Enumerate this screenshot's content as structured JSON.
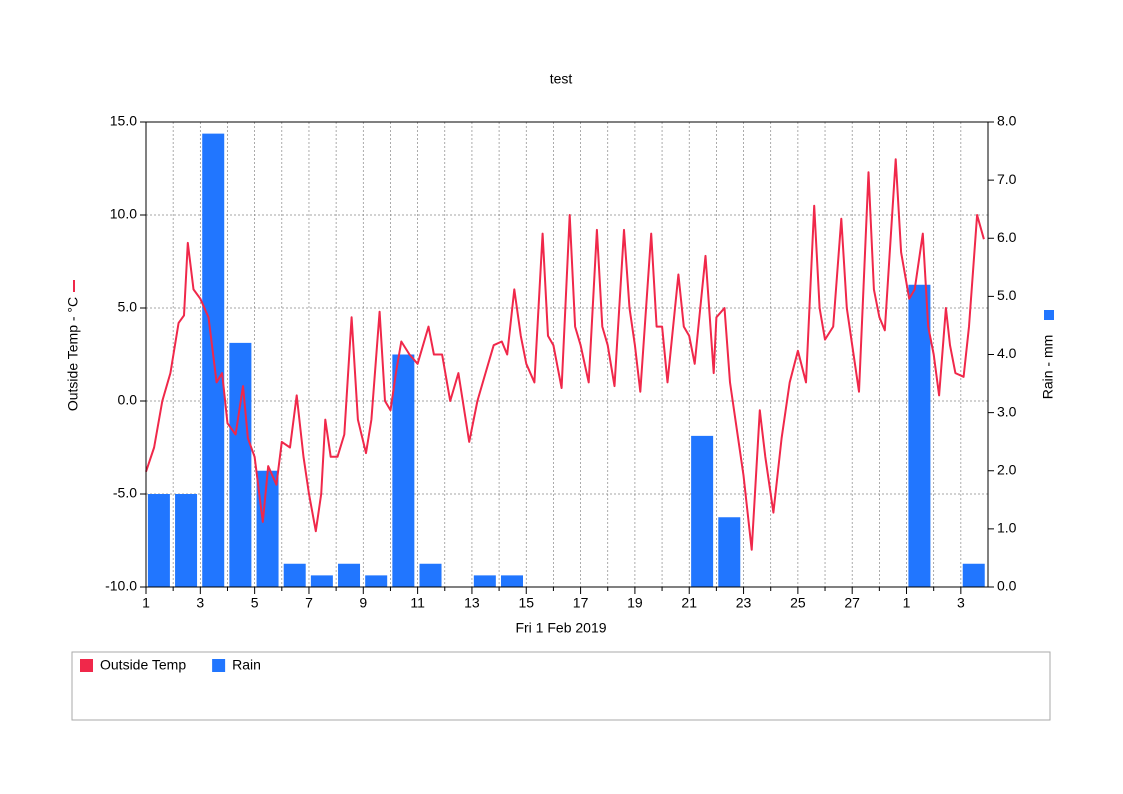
{
  "chart_data": {
    "type": "line",
    "title": "test",
    "x_label": "Fri 1 Feb 2019",
    "y_label": "Outside Temp - °C",
    "y2_label": "Rain - mm",
    "xlim": [
      0,
      31
    ],
    "xticks": [
      {
        "value": 0,
        "label": "1"
      },
      {
        "value": 2,
        "label": "3"
      },
      {
        "value": 4,
        "label": "5"
      },
      {
        "value": 6,
        "label": "7"
      },
      {
        "value": 8,
        "label": "9"
      },
      {
        "value": 10,
        "label": "11"
      },
      {
        "value": 12,
        "label": "13"
      },
      {
        "value": 14,
        "label": "15"
      },
      {
        "value": 16,
        "label": "17"
      },
      {
        "value": 18,
        "label": "19"
      },
      {
        "value": 20,
        "label": "21"
      },
      {
        "value": 22,
        "label": "23"
      },
      {
        "value": 24,
        "label": "25"
      },
      {
        "value": 26,
        "label": "27"
      },
      {
        "value": 28,
        "label": "1"
      },
      {
        "value": 30,
        "label": "3"
      }
    ],
    "xminorticks": [
      1,
      3,
      5,
      7,
      9,
      11,
      13,
      15,
      17,
      19,
      21,
      23,
      25,
      27,
      29
    ],
    "ylim": [
      -10,
      15
    ],
    "yticks": [
      {
        "value": 15,
        "label": "15.0"
      },
      {
        "value": 10,
        "label": "10.0"
      },
      {
        "value": 5,
        "label": "5.0"
      },
      {
        "value": 0,
        "label": "0.0"
      },
      {
        "value": -5,
        "label": "-5.0"
      },
      {
        "value": -10,
        "label": "-10.0"
      }
    ],
    "y2lim": [
      0,
      8
    ],
    "y2ticks": [
      {
        "value": 8,
        "label": "8.0"
      },
      {
        "value": 7,
        "label": "7.0"
      },
      {
        "value": 6,
        "label": "6.0"
      },
      {
        "value": 5,
        "label": "5.0"
      },
      {
        "value": 4,
        "label": "4.0"
      },
      {
        "value": 3,
        "label": "3.0"
      },
      {
        "value": 2,
        "label": "2.0"
      },
      {
        "value": 1,
        "label": "1.0"
      },
      {
        "value": 0,
        "label": "0.0"
      }
    ],
    "grid": true,
    "legend": "bottom",
    "series": [
      {
        "name": "Outside Temp",
        "type": "line",
        "color": "#f0284a",
        "x": [
          0,
          0.3,
          0.6,
          0.9,
          1.2,
          1.4,
          1.54,
          1.75,
          2.0,
          2.3,
          2.6,
          2.8,
          3.0,
          3.3,
          3.57,
          3.75,
          4.0,
          4.3,
          4.5,
          4.8,
          5.0,
          5.3,
          5.55,
          5.8,
          6.0,
          6.25,
          6.45,
          6.6,
          6.8,
          7.05,
          7.3,
          7.57,
          7.8,
          8.1,
          8.3,
          8.6,
          8.8,
          9.0,
          9.2,
          9.4,
          9.7,
          10.0,
          10.4,
          10.6,
          10.9,
          11.2,
          11.5,
          11.9,
          12.2,
          12.5,
          12.8,
          13.1,
          13.3,
          13.56,
          13.8,
          14.0,
          14.3,
          14.6,
          14.8,
          15.0,
          15.3,
          15.6,
          15.8,
          16.0,
          16.3,
          16.6,
          16.8,
          17.0,
          17.25,
          17.6,
          17.8,
          18.0,
          18.2,
          18.6,
          18.8,
          19.0,
          19.2,
          19.6,
          19.8,
          20.0,
          20.2,
          20.6,
          20.9,
          21.0,
          21.3,
          21.5,
          21.8,
          22.0,
          22.3,
          22.6,
          22.8,
          23.1,
          23.4,
          23.7,
          24.0,
          24.3,
          24.6,
          24.8,
          25.0,
          25.3,
          25.6,
          25.8,
          26.0,
          26.25,
          26.6,
          26.8,
          27.0,
          27.2,
          27.6,
          27.8,
          28.1,
          28.3,
          28.6,
          28.8,
          29.0,
          29.2,
          29.45,
          29.6,
          29.8,
          30.1,
          30.3,
          30.6,
          30.85
        ],
        "values": [
          -3.8,
          -2.5,
          0,
          1.5,
          4.2,
          4.6,
          8.5,
          6,
          5.5,
          4.5,
          1.0,
          1.5,
          -1.2,
          -1.8,
          0.8,
          -2,
          -3,
          -6.5,
          -3.5,
          -4.5,
          -2.2,
          -2.5,
          0.3,
          -3,
          -5,
          -7,
          -5,
          -1,
          -3,
          -3,
          -1.8,
          4.5,
          -1,
          -2.8,
          -1,
          4.8,
          0,
          -0.5,
          1.5,
          3.2,
          2.5,
          2,
          4,
          2.5,
          2.5,
          0,
          1.5,
          -2.2,
          0,
          1.5,
          3,
          3.2,
          2.5,
          6,
          3.5,
          2,
          1,
          9,
          3.5,
          3,
          0.7,
          10,
          4,
          3,
          1,
          9.2,
          4,
          3,
          0.8,
          9.2,
          5,
          3,
          0.5,
          9,
          4,
          4,
          1,
          6.8,
          4,
          3.5,
          2,
          7.8,
          1.5,
          4.5,
          5,
          1,
          -2,
          -4,
          -8,
          -0.5,
          -3,
          -6,
          -2,
          1,
          2.7,
          1,
          10.5,
          5,
          3.3,
          4,
          9.8,
          5,
          3,
          0.5,
          12.3,
          6,
          4.5,
          3.8,
          13,
          8,
          5.5,
          6,
          9,
          4,
          2.5,
          0.3,
          5,
          3,
          1.5,
          1.3,
          4,
          10,
          8.7
        ]
      },
      {
        "name": "Rain",
        "type": "bar",
        "axis": "y2",
        "color": "#2176ff",
        "x": [
          0,
          1,
          2,
          3,
          4,
          5,
          6,
          7,
          8,
          9,
          10,
          11,
          12,
          13,
          14,
          15,
          16,
          17,
          18,
          19,
          20,
          21,
          22,
          23,
          24,
          25,
          26,
          27,
          28,
          29,
          30
        ],
        "values": [
          1.6,
          1.6,
          7.8,
          4.2,
          2.0,
          0.4,
          0.2,
          0.4,
          0.2,
          4.0,
          0.4,
          0,
          0.2,
          0.2,
          0,
          0,
          0,
          0,
          0,
          0,
          2.6,
          1.2,
          0,
          0,
          0,
          0,
          0,
          0,
          5.2,
          0,
          0.4
        ]
      }
    ]
  }
}
